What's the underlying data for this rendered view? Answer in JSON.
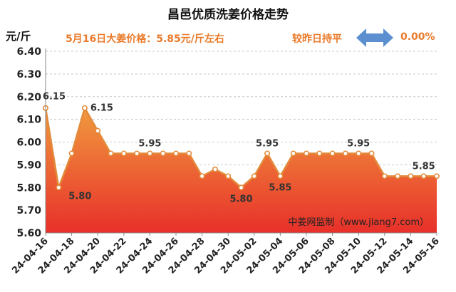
{
  "title": "昌邑优质洗姜价格走势",
  "y_unit": "元/斤",
  "price_note": "5月16日大姜价格：5.85元/斤左右",
  "change_label": "较昨日持平",
  "change_pct": "0.00%",
  "change_icon": "double-arrow-icon",
  "source": "中姜网监制（www.jiang7.com）",
  "colors": {
    "title": "#111111",
    "accent": "#e97a2a",
    "line": "#e38a3a",
    "fill_top": "#f09a3e",
    "fill_bottom": "#e8302a",
    "arrow": "#5b8fd0"
  },
  "chart_data": {
    "type": "area",
    "x": [
      "24-04-16",
      "24-04-17",
      "24-04-18",
      "24-04-19",
      "24-04-20",
      "24-04-21",
      "24-04-22",
      "24-04-23",
      "24-04-24",
      "24-04-25",
      "24-04-26",
      "24-04-27",
      "24-04-28",
      "24-04-29",
      "24-04-30",
      "24-05-01",
      "24-05-02",
      "24-05-03",
      "24-05-04",
      "24-05-05",
      "24-05-06",
      "24-05-07",
      "24-05-08",
      "24-05-09",
      "24-05-10",
      "24-05-11",
      "24-05-12",
      "24-05-13",
      "24-05-14",
      "24-05-15",
      "24-05-16"
    ],
    "y": [
      6.15,
      5.8,
      5.95,
      6.15,
      6.05,
      5.95,
      5.95,
      5.95,
      5.95,
      5.95,
      5.95,
      5.95,
      5.85,
      5.88,
      5.85,
      5.8,
      5.85,
      5.95,
      5.85,
      5.95,
      5.95,
      5.95,
      5.95,
      5.95,
      5.95,
      5.95,
      5.85,
      5.85,
      5.85,
      5.85,
      5.85
    ],
    "x_tick_labels": [
      "24-04-16",
      "24-04-18",
      "24-04-20",
      "24-04-22",
      "24-04-24",
      "24-04-26",
      "24-04-28",
      "24-04-30",
      "24-05-02",
      "24-05-04",
      "24-05-06",
      "24-05-08",
      "24-05-10",
      "24-05-12",
      "24-05-14",
      "24-05-16"
    ],
    "y_ticks": [
      "5.60",
      "5.70",
      "5.80",
      "5.90",
      "6.00",
      "6.10",
      "6.20",
      "6.30",
      "6.40"
    ],
    "ylim": [
      5.6,
      6.4
    ],
    "annotations": [
      {
        "x": "24-04-16",
        "text": "6.15",
        "position": "above-right"
      },
      {
        "x": "24-04-17",
        "text": "5.80",
        "position": "below-right"
      },
      {
        "x": "24-04-19",
        "text": "6.15",
        "position": "right"
      },
      {
        "x": "24-04-24",
        "text": "5.95",
        "position": "above"
      },
      {
        "x": "24-05-01",
        "text": "5.80",
        "position": "below"
      },
      {
        "x": "24-05-03",
        "text": "5.95",
        "position": "above"
      },
      {
        "x": "24-05-04",
        "text": "5.85",
        "position": "below"
      },
      {
        "x": "24-05-10",
        "text": "5.95",
        "position": "above"
      },
      {
        "x": "24-05-15",
        "text": "5.85",
        "position": "above"
      }
    ],
    "grid": true
  }
}
